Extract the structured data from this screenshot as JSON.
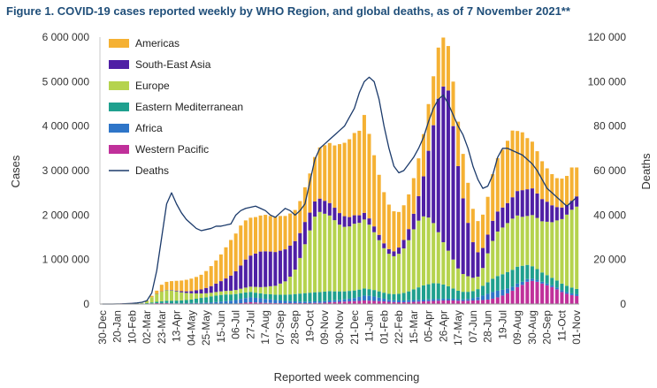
{
  "figure": {
    "title": "Figure 1. COVID-19 cases reported weekly by WHO Region, and global deaths, as of 7 November 2021**"
  },
  "chart_data": {
    "type": "bar",
    "stacked": true,
    "title": "Figure 1. COVID-19 cases reported weekly by WHO Region, and global deaths, as of 7 November 2021**",
    "xlabel": "Reported week commencing",
    "ylabel": "Cases",
    "y2label": "Deaths",
    "ylim": [
      0,
      6000000
    ],
    "y2lim": [
      0,
      120000
    ],
    "yticks": [
      "0",
      "1 000 000",
      "2 000 000",
      "3 000 000",
      "4 000 000",
      "5 000 000",
      "6 000 000"
    ],
    "y2ticks": [
      "0",
      "20 000",
      "40 000",
      "60 000",
      "80 000",
      "100 000",
      "120 000"
    ],
    "grid": false,
    "legend_position": "top-left",
    "tick_labels": [
      "30-Dec",
      "20-Jan",
      "10-Feb",
      "02-Mar",
      "23-Mar",
      "13-Apr",
      "04-May",
      "25-May",
      "15-Jun",
      "06-Jul",
      "27-Jul",
      "17-Aug",
      "07-Sep",
      "28-Sep",
      "19-Oct",
      "09-Nov",
      "30-Nov",
      "21-Dec",
      "11-Jan",
      "01-Feb",
      "22-Feb",
      "15-Mar",
      "05-Apr",
      "26-Apr",
      "17-May",
      "07-Jun",
      "28-Jun",
      "19-Jul",
      "09-Aug",
      "30-Aug",
      "20-Sep",
      "11-Oct",
      "01-Nov"
    ],
    "categories": [
      "30-Dec",
      "06-Jan",
      "13-Jan",
      "20-Jan",
      "27-Jan",
      "03-Feb",
      "10-Feb",
      "17-Feb",
      "24-Feb",
      "02-Mar",
      "09-Mar",
      "16-Mar",
      "23-Mar",
      "30-Mar",
      "06-Apr",
      "13-Apr",
      "20-Apr",
      "27-Apr",
      "04-May",
      "11-May",
      "18-May",
      "25-May",
      "01-Jun",
      "08-Jun",
      "15-Jun",
      "22-Jun",
      "29-Jun",
      "06-Jul",
      "13-Jul",
      "20-Jul",
      "27-Jul",
      "03-Aug",
      "10-Aug",
      "17-Aug",
      "24-Aug",
      "31-Aug",
      "07-Sep",
      "14-Sep",
      "21-Sep",
      "28-Sep",
      "05-Oct",
      "12-Oct",
      "19-Oct",
      "26-Oct",
      "02-Nov",
      "09-Nov",
      "16-Nov",
      "23-Nov",
      "30-Nov",
      "07-Dec",
      "14-Dec",
      "21-Dec",
      "28-Dec",
      "04-Jan",
      "11-Jan",
      "18-Jan",
      "25-Jan",
      "01-Feb",
      "08-Feb",
      "15-Feb",
      "22-Feb",
      "01-Mar",
      "08-Mar",
      "15-Mar",
      "22-Mar",
      "29-Mar",
      "05-Apr",
      "12-Apr",
      "19-Apr",
      "26-Apr",
      "03-May",
      "10-May",
      "17-May",
      "24-May",
      "31-May",
      "07-Jun",
      "14-Jun",
      "21-Jun",
      "28-Jun",
      "05-Jul",
      "12-Jul",
      "19-Jul",
      "26-Jul",
      "02-Aug",
      "09-Aug",
      "16-Aug",
      "23-Aug",
      "30-Aug",
      "06-Sep",
      "13-Sep",
      "20-Sep",
      "27-Sep",
      "04-Oct",
      "11-Oct",
      "18-Oct",
      "25-Oct",
      "01-Nov"
    ],
    "series": [
      {
        "name": "Western Pacific",
        "color": "#c0309a",
        "values": [
          0,
          0,
          0,
          5000,
          15000,
          20000,
          25000,
          15000,
          10000,
          10000,
          15000,
          20000,
          20000,
          20000,
          15000,
          10000,
          10000,
          10000,
          10000,
          10000,
          10000,
          10000,
          10000,
          10000,
          10000,
          10000,
          10000,
          10000,
          20000,
          30000,
          40000,
          35000,
          30000,
          25000,
          25000,
          20000,
          20000,
          20000,
          20000,
          20000,
          20000,
          20000,
          20000,
          25000,
          25000,
          30000,
          40000,
          45000,
          50000,
          55000,
          60000,
          65000,
          70000,
          80000,
          75000,
          70000,
          65000,
          60000,
          50000,
          45000,
          40000,
          40000,
          45000,
          50000,
          55000,
          60000,
          65000,
          70000,
          75000,
          80000,
          80000,
          80000,
          75000,
          70000,
          75000,
          80000,
          85000,
          90000,
          100000,
          120000,
          150000,
          190000,
          240000,
          300000,
          380000,
          430000,
          500000,
          520000,
          500000,
          460000,
          420000,
          380000,
          330000,
          270000,
          230000,
          200000,
          180000
        ]
      },
      {
        "name": "Africa",
        "color": "#2e75c8",
        "values": [
          0,
          0,
          0,
          0,
          0,
          0,
          0,
          0,
          0,
          0,
          0,
          0,
          2000,
          4000,
          5000,
          7000,
          8000,
          10000,
          12000,
          14000,
          18000,
          22000,
          28000,
          35000,
          45000,
          55000,
          65000,
          80000,
          95000,
          105000,
          110000,
          105000,
          100000,
          90000,
          80000,
          70000,
          60000,
          50000,
          45000,
          40000,
          35000,
          35000,
          35000,
          35000,
          35000,
          35000,
          40000,
          40000,
          45000,
          50000,
          60000,
          70000,
          90000,
          110000,
          110000,
          100000,
          80000,
          60000,
          45000,
          40000,
          40000,
          40000,
          40000,
          40000,
          40000,
          40000,
          40000,
          40000,
          40000,
          40000,
          40000,
          40000,
          35000,
          35000,
          40000,
          50000,
          70000,
          100000,
          130000,
          150000,
          150000,
          130000,
          110000,
          90000,
          80000,
          70000,
          60000,
          50000,
          45000,
          40000,
          40000,
          40000,
          40000,
          40000,
          40000,
          40000,
          40000
        ]
      },
      {
        "name": "Eastern Mediterranean",
        "color": "#1fa08e",
        "values": [
          0,
          0,
          0,
          0,
          0,
          0,
          0,
          1000,
          4000,
          10000,
          20000,
          30000,
          40000,
          50000,
          55000,
          60000,
          65000,
          70000,
          80000,
          95000,
          110000,
          120000,
          135000,
          145000,
          150000,
          150000,
          140000,
          135000,
          130000,
          125000,
          120000,
          115000,
          110000,
          110000,
          115000,
          120000,
          130000,
          140000,
          150000,
          165000,
          180000,
          190000,
          200000,
          205000,
          210000,
          215000,
          210000,
          200000,
          190000,
          180000,
          175000,
          170000,
          165000,
          160000,
          150000,
          145000,
          140000,
          135000,
          135000,
          140000,
          150000,
          170000,
          200000,
          240000,
          280000,
          320000,
          340000,
          360000,
          350000,
          320000,
          280000,
          230000,
          190000,
          170000,
          160000,
          160000,
          180000,
          220000,
          260000,
          300000,
          330000,
          350000,
          370000,
          380000,
          380000,
          360000,
          320000,
          280000,
          240000,
          210000,
          190000,
          170000,
          160000,
          150000,
          140000,
          130000,
          120000
        ]
      },
      {
        "name": "Europe",
        "color": "#b5d34e",
        "values": [
          0,
          0,
          0,
          0,
          0,
          0,
          0,
          2000,
          10000,
          50000,
          120000,
          180000,
          220000,
          240000,
          230000,
          210000,
          180000,
          160000,
          140000,
          120000,
          100000,
          90000,
          80000,
          80000,
          80000,
          80000,
          85000,
          90000,
          100000,
          110000,
          120000,
          130000,
          140000,
          160000,
          180000,
          200000,
          250000,
          300000,
          400000,
          550000,
          800000,
          1100000,
          1400000,
          1700000,
          1800000,
          1750000,
          1700000,
          1600000,
          1500000,
          1450000,
          1450000,
          1500000,
          1500000,
          1550000,
          1450000,
          1300000,
          1150000,
          1000000,
          900000,
          850000,
          900000,
          1000000,
          1150000,
          1350000,
          1500000,
          1550000,
          1500000,
          1350000,
          1150000,
          950000,
          800000,
          650000,
          500000,
          400000,
          350000,
          300000,
          280000,
          400000,
          650000,
          850000,
          1000000,
          1050000,
          1100000,
          1150000,
          1150000,
          1100000,
          1100000,
          1150000,
          1150000,
          1150000,
          1200000,
          1250000,
          1350000,
          1450000,
          1600000,
          1750000,
          1850000
        ]
      },
      {
        "name": "South-East Asia",
        "color": "#4f1fa5",
        "values": [
          0,
          0,
          0,
          0,
          0,
          0,
          0,
          0,
          0,
          0,
          0,
          1000,
          2000,
          5000,
          10000,
          15000,
          25000,
          35000,
          50000,
          70000,
          90000,
          120000,
          150000,
          190000,
          230000,
          280000,
          340000,
          420000,
          520000,
          630000,
          700000,
          750000,
          800000,
          800000,
          780000,
          760000,
          740000,
          720000,
          700000,
          640000,
          560000,
          500000,
          400000,
          340000,
          300000,
          290000,
          280000,
          280000,
          260000,
          240000,
          210000,
          190000,
          170000,
          150000,
          140000,
          130000,
          120000,
          110000,
          105000,
          110000,
          140000,
          190000,
          250000,
          350000,
          550000,
          900000,
          1500000,
          2200000,
          3000000,
          3500000,
          3600000,
          3000000,
          2300000,
          1700000,
          1200000,
          800000,
          550000,
          450000,
          420000,
          450000,
          450000,
          450000,
          450000,
          480000,
          550000,
          600000,
          600000,
          600000,
          550000,
          500000,
          450000,
          380000,
          300000,
          260000,
          220000,
          200000,
          230000
        ]
      },
      {
        "name": "Americas",
        "color": "#f5b133",
        "values": [
          0,
          0,
          0,
          0,
          0,
          0,
          0,
          0,
          0,
          10000,
          30000,
          70000,
          150000,
          180000,
          200000,
          220000,
          240000,
          260000,
          280000,
          300000,
          330000,
          380000,
          450000,
          520000,
          600000,
          700000,
          800000,
          850000,
          900000,
          880000,
          850000,
          820000,
          810000,
          820000,
          800000,
          790000,
          780000,
          750000,
          720000,
          700000,
          720000,
          780000,
          880000,
          1000000,
          1150000,
          1250000,
          1350000,
          1400000,
          1550000,
          1650000,
          1750000,
          1850000,
          1900000,
          2200000,
          1900000,
          1600000,
          1350000,
          1150000,
          1000000,
          900000,
          800000,
          780000,
          780000,
          800000,
          850000,
          950000,
          1050000,
          1100000,
          1150000,
          1100000,
          1000000,
          1000000,
          1000000,
          1000000,
          900000,
          750000,
          700000,
          750000,
          850000,
          1050000,
          1200000,
          1300000,
          1400000,
          1500000,
          1350000,
          1300000,
          1150000,
          1050000,
          950000,
          850000,
          750000,
          700000,
          650000,
          650000,
          650000,
          750000,
          650000
        ]
      }
    ],
    "deaths": {
      "name": "Deaths",
      "color": "#1b3a6b",
      "values": [
        0,
        0,
        0,
        50,
        100,
        200,
        300,
        500,
        800,
        1500,
        5000,
        15000,
        30000,
        45000,
        50000,
        45000,
        41000,
        38000,
        36000,
        34000,
        33000,
        33500,
        34000,
        35000,
        35000,
        35500,
        36000,
        40000,
        42000,
        43000,
        43500,
        44000,
        43000,
        42000,
        40000,
        39000,
        41000,
        43000,
        42000,
        40000,
        42000,
        45000,
        55000,
        65000,
        70000,
        72000,
        74000,
        76000,
        78000,
        80000,
        84000,
        88000,
        95000,
        100000,
        102000,
        100000,
        92000,
        80000,
        70000,
        62000,
        59000,
        60000,
        63000,
        66000,
        70000,
        75000,
        82000,
        88000,
        92000,
        94000,
        90000,
        85000,
        80000,
        76000,
        70000,
        62000,
        56000,
        52000,
        53000,
        58000,
        66000,
        70000,
        70000,
        69000,
        68000,
        67000,
        65000,
        63000,
        60000,
        56000,
        52000,
        50000,
        48000,
        46000,
        44000,
        46000,
        48000
      ]
    }
  }
}
